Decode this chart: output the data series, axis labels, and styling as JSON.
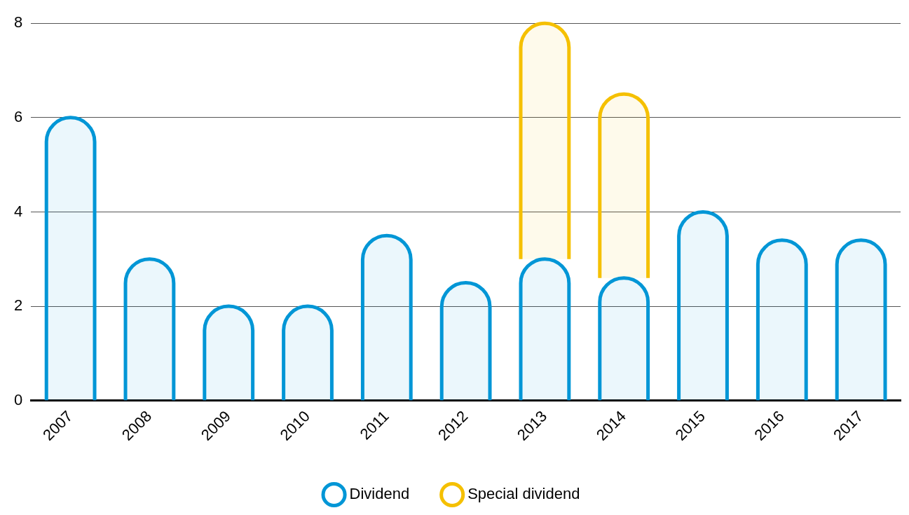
{
  "chart_data": {
    "type": "bar",
    "stacked": true,
    "categories": [
      "2007",
      "2008",
      "2009",
      "2010",
      "2011",
      "2012",
      "2013",
      "2014",
      "2015",
      "2016",
      "2017"
    ],
    "series": [
      {
        "name": "Dividend",
        "color": "#0096d6",
        "values": [
          6.0,
          3.0,
          2.0,
          2.0,
          3.5,
          2.5,
          3.0,
          2.6,
          4.0,
          3.4,
          3.4
        ]
      },
      {
        "name": "Special dividend",
        "color": "#f5c000",
        "values": [
          null,
          null,
          null,
          null,
          null,
          null,
          5.0,
          3.9,
          null,
          null,
          null
        ]
      }
    ],
    "ylim": [
      0,
      8
    ],
    "yticks": [
      0,
      2,
      4,
      6,
      8
    ],
    "grid": "y",
    "legend": "bottom"
  }
}
